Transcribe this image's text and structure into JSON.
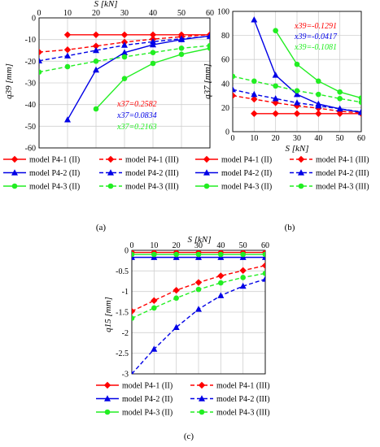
{
  "colors": {
    "red": "#ff0000",
    "blue": "#0000e6",
    "green": "#22ee22",
    "grid": "#d0d0d0"
  },
  "chart_data": [
    {
      "type": "line",
      "panel_label": "(a)",
      "xlabel": "S [kN]",
      "ylabel": "q39 [mm]",
      "xlim": [
        0,
        60
      ],
      "ylim": [
        -60,
        0
      ],
      "xticks": [
        0,
        10,
        20,
        30,
        40,
        50,
        60
      ],
      "yticks": [
        0,
        -10,
        -20,
        -30,
        -40,
        -50,
        -60
      ],
      "x_axis_position": "top",
      "grid": true,
      "annotations": [
        {
          "text": "x37=0.2582",
          "color": "#ff0000"
        },
        {
          "text": "x37=0.0834",
          "color": "#0000e6"
        },
        {
          "text": "x37=0.2163",
          "color": "#22ee22"
        }
      ],
      "series": [
        {
          "name": "model P4-1 (II)",
          "color": "#ff0000",
          "marker": "diamond",
          "dash": false,
          "x": [
            10,
            20,
            30,
            40,
            50,
            60
          ],
          "y": [
            -7.8,
            -7.8,
            -7.8,
            -7.8,
            -7.8,
            -7.8
          ]
        },
        {
          "name": "model P4-1 (III)",
          "color": "#ff0000",
          "marker": "diamond",
          "dash": true,
          "x": [
            0,
            10,
            20,
            30,
            40,
            50,
            60
          ],
          "y": [
            -15.8,
            -14.7,
            -13,
            -11.2,
            -9.8,
            -8.7,
            -7.7
          ]
        },
        {
          "name": "model P4-2 (II)",
          "color": "#0000e6",
          "marker": "triangle",
          "dash": false,
          "x": [
            10,
            20,
            30,
            40,
            50,
            60
          ],
          "y": [
            -47,
            -24,
            -16,
            -12.4,
            -10,
            -8.3
          ]
        },
        {
          "name": "model P4-2 (III)",
          "color": "#0000e6",
          "marker": "triangle",
          "dash": true,
          "x": [
            0,
            10,
            20,
            30,
            40,
            50,
            60
          ],
          "y": [
            -19.8,
            -17.5,
            -15,
            -12.6,
            -11,
            -9.6,
            -8.5
          ]
        },
        {
          "name": "model P4-3 (II)",
          "color": "#22ee22",
          "marker": "circle",
          "dash": false,
          "x": [
            20,
            30,
            40,
            50,
            60
          ],
          "y": [
            -42,
            -28,
            -21,
            -16.8,
            -14
          ]
        },
        {
          "name": "model P4-3 (III)",
          "color": "#22ee22",
          "marker": "circle",
          "dash": true,
          "x": [
            0,
            10,
            20,
            30,
            40,
            50,
            60
          ],
          "y": [
            -25,
            -22.5,
            -20,
            -18,
            -16,
            -14,
            -12.8
          ]
        }
      ]
    },
    {
      "type": "line",
      "panel_label": "(b)",
      "xlabel": "S [kN]",
      "ylabel": "q37 [mm]",
      "xlim": [
        0,
        60
      ],
      "ylim": [
        0,
        100
      ],
      "xticks": [
        0,
        10,
        20,
        30,
        40,
        50,
        60
      ],
      "yticks": [
        0,
        20,
        40,
        60,
        80,
        100
      ],
      "x_axis_position": "bottom",
      "grid": true,
      "annotations": [
        {
          "text": "x39=-0.1291",
          "color": "#ff0000"
        },
        {
          "text": "x39=-0.0417",
          "color": "#0000e6"
        },
        {
          "text": "x39=-0.1081",
          "color": "#22ee22"
        }
      ],
      "series": [
        {
          "name": "model P4-1 (II)",
          "color": "#ff0000",
          "marker": "diamond",
          "dash": false,
          "x": [
            10,
            20,
            30,
            40,
            50,
            60
          ],
          "y": [
            15,
            15,
            15,
            15,
            15,
            15
          ]
        },
        {
          "name": "model P4-1 (III)",
          "color": "#ff0000",
          "marker": "diamond",
          "dash": true,
          "x": [
            0,
            10,
            20,
            30,
            40,
            50,
            60
          ],
          "y": [
            30,
            27,
            24,
            21.5,
            19.5,
            17,
            15.5
          ]
        },
        {
          "name": "model P4-2 (II)",
          "color": "#0000e6",
          "marker": "triangle",
          "dash": false,
          "x": [
            10,
            20,
            30,
            40,
            50,
            60
          ],
          "y": [
            93,
            47,
            31,
            23,
            19,
            16
          ]
        },
        {
          "name": "model P4-2 (III)",
          "color": "#0000e6",
          "marker": "triangle",
          "dash": true,
          "x": [
            0,
            10,
            20,
            30,
            40,
            50,
            60
          ],
          "y": [
            35,
            31,
            27.5,
            24,
            21.5,
            19,
            16.5
          ]
        },
        {
          "name": "model P4-3 (II)",
          "color": "#22ee22",
          "marker": "circle",
          "dash": false,
          "x": [
            20,
            30,
            40,
            50,
            60
          ],
          "y": [
            84,
            56,
            42,
            33,
            28
          ]
        },
        {
          "name": "model P4-3 (III)",
          "color": "#22ee22",
          "marker": "circle",
          "dash": true,
          "x": [
            0,
            10,
            20,
            30,
            40,
            50,
            60
          ],
          "y": [
            46,
            42,
            38,
            34,
            31,
            27.5,
            24.5
          ]
        }
      ]
    },
    {
      "type": "line",
      "panel_label": "(c)",
      "xlabel": "S [kN]",
      "ylabel": "q15 [mm]",
      "xlim": [
        0,
        60
      ],
      "ylim": [
        -3,
        0
      ],
      "xticks": [
        0,
        10,
        20,
        30,
        40,
        50,
        60
      ],
      "yticks": [
        0,
        -0.5,
        -1,
        -1.5,
        -2,
        -2.5,
        -3
      ],
      "x_axis_position": "top",
      "grid": true,
      "annotations": [],
      "series": [
        {
          "name": "model P4-1 (II)",
          "color": "#ff0000",
          "marker": "diamond",
          "dash": false,
          "x": [
            0,
            10,
            20,
            30,
            40,
            50,
            60
          ],
          "y": [
            -0.05,
            -0.05,
            -0.05,
            -0.05,
            -0.05,
            -0.05,
            -0.05
          ]
        },
        {
          "name": "model P4-1 (III)",
          "color": "#ff0000",
          "marker": "diamond",
          "dash": true,
          "x": [
            0,
            10,
            20,
            30,
            40,
            50,
            60
          ],
          "y": [
            -1.48,
            -1.22,
            -0.97,
            -0.78,
            -0.62,
            -0.49,
            -0.37
          ]
        },
        {
          "name": "model P4-2 (II)",
          "color": "#0000e6",
          "marker": "triangle",
          "dash": false,
          "x": [
            0,
            10,
            20,
            30,
            40,
            50,
            60
          ],
          "y": [
            -0.17,
            -0.17,
            -0.17,
            -0.17,
            -0.17,
            -0.17,
            -0.17
          ]
        },
        {
          "name": "model P4-2 (III)",
          "color": "#0000e6",
          "marker": "triangle",
          "dash": true,
          "x": [
            0,
            10,
            20,
            30,
            40,
            50,
            60
          ],
          "y": [
            -3,
            -2.4,
            -1.87,
            -1.43,
            -1.1,
            -0.87,
            -0.7
          ]
        },
        {
          "name": "model P4-3 (II)",
          "color": "#22ee22",
          "marker": "circle",
          "dash": false,
          "x": [
            0,
            10,
            20,
            30,
            40,
            50,
            60
          ],
          "y": [
            -0.1,
            -0.1,
            -0.1,
            -0.1,
            -0.1,
            -0.1,
            -0.1
          ]
        },
        {
          "name": "model P4-3 (III)",
          "color": "#22ee22",
          "marker": "circle",
          "dash": true,
          "x": [
            0,
            10,
            20,
            30,
            40,
            50,
            60
          ],
          "y": [
            -1.65,
            -1.4,
            -1.16,
            -0.95,
            -0.79,
            -0.66,
            -0.56
          ]
        }
      ]
    }
  ]
}
